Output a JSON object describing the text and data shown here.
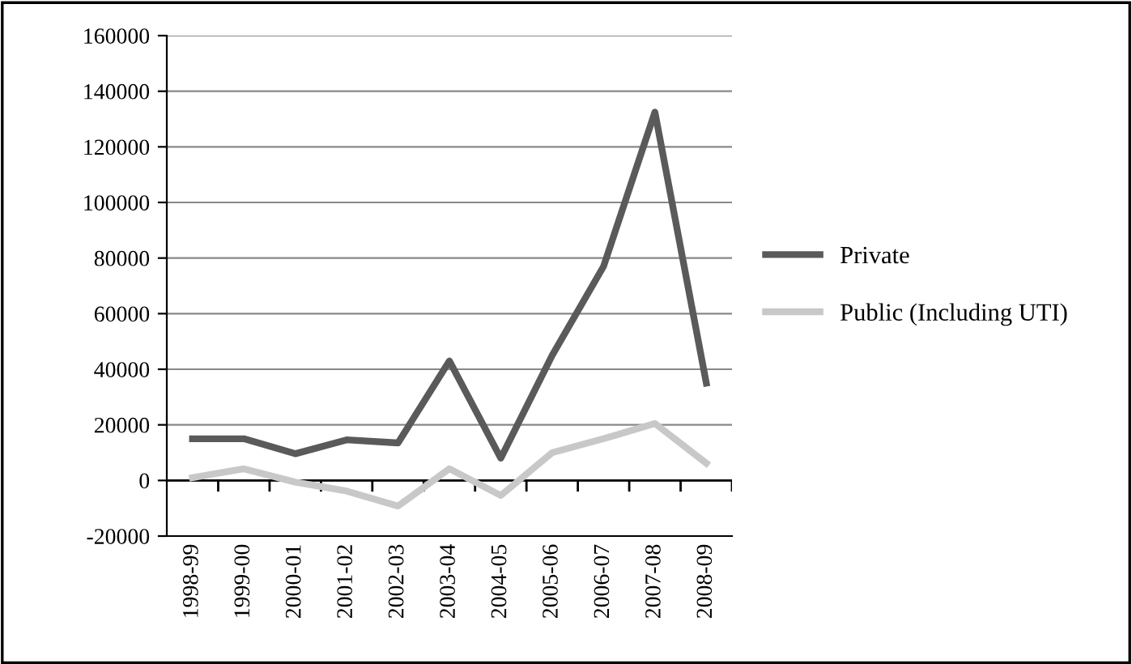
{
  "chart_data": {
    "type": "line",
    "categories": [
      "1998-99",
      "1999-00",
      "2000-01",
      "2001-02",
      "2002-03",
      "2003-04",
      "2004-05",
      "2005-06",
      "2006-07",
      "2007-08",
      "2008-09"
    ],
    "series": [
      {
        "name": "Private",
        "color": "#5a5a5a",
        "values": [
          15000,
          15000,
          9600,
          14600,
          13500,
          43000,
          8000,
          45000,
          77000,
          132500,
          35000
        ]
      },
      {
        "name": "Public (Including UTI)",
        "color": "#c8c8c8",
        "values": [
          1000,
          4200,
          -600,
          -3800,
          -9200,
          4200,
          -5400,
          10000,
          15000,
          20500,
          6200
        ]
      }
    ],
    "ylim": [
      -20000,
      160000
    ],
    "yticks": [
      -20000,
      0,
      20000,
      40000,
      60000,
      80000,
      100000,
      120000,
      140000,
      160000
    ],
    "grid": "y",
    "legend": "right",
    "marker": "none",
    "line_style": "solid"
  }
}
